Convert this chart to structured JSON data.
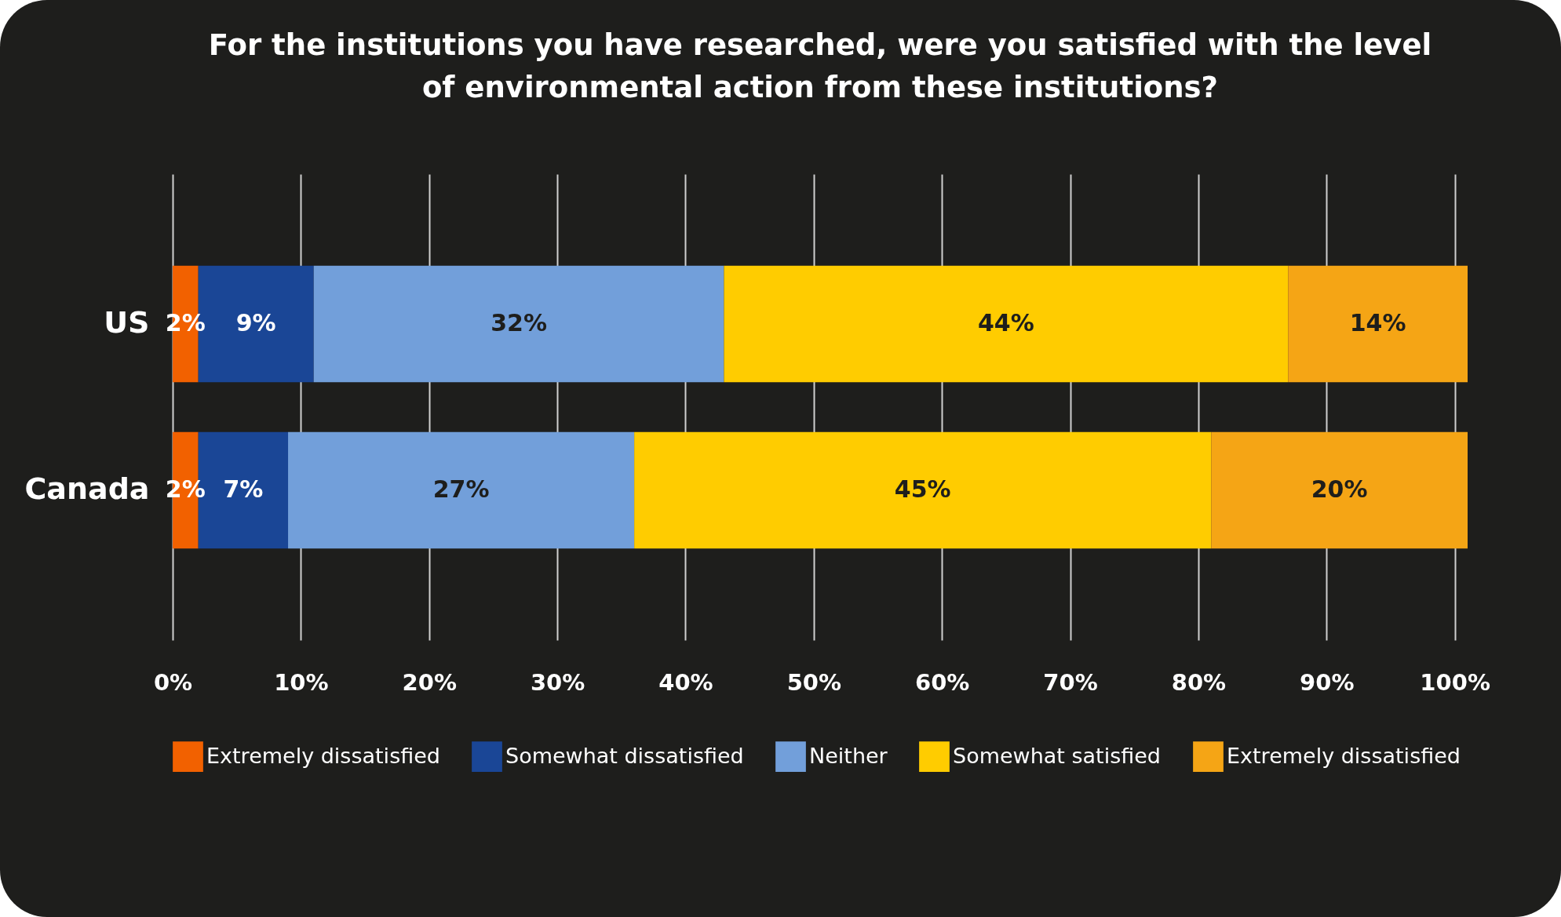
{
  "chart_data": {
    "type": "bar",
    "orientation": "horizontal",
    "stacked": true,
    "title": "For the institutions you have researched, were you satisfied with the level\nof environmental action from these institutions?",
    "categories": [
      "US",
      "Canada"
    ],
    "series": [
      {
        "name": "Extremely dissatisfied",
        "color": "#f26100",
        "values": [
          2,
          2
        ]
      },
      {
        "name": "Somewhat dissatisfied",
        "color": "#1a4696",
        "values": [
          9,
          7
        ]
      },
      {
        "name": "Neither",
        "color": "#729fda",
        "values": [
          32,
          27
        ]
      },
      {
        "name": "Somewhat satisfied",
        "color": "#ffcc00",
        "values": [
          44,
          45
        ]
      },
      {
        "name": "Extremely dissatisfied",
        "color": "#f5a515",
        "values": [
          14,
          20
        ]
      }
    ],
    "xlim": [
      0,
      101
    ],
    "xticks": [
      {
        "value": 0,
        "label": "0%"
      },
      {
        "value": 10,
        "label": "10%"
      },
      {
        "value": 20,
        "label": "20%"
      },
      {
        "value": 30,
        "label": "30%"
      },
      {
        "value": 40,
        "label": "40%"
      },
      {
        "value": 50,
        "label": "50%"
      },
      {
        "value": 60,
        "label": "60%"
      },
      {
        "value": 70,
        "label": "70%"
      },
      {
        "value": 80,
        "label": "80%"
      },
      {
        "value": 90,
        "label": "90%"
      },
      {
        "value": 100,
        "label": "100%"
      }
    ],
    "value_labels": [
      [
        "2%",
        "2%"
      ],
      [
        "9%",
        "7%"
      ],
      [
        "32%",
        "27%"
      ],
      [
        "44%",
        "45%"
      ],
      [
        "14%",
        "20%"
      ]
    ],
    "grid": "x",
    "legend": "bottom"
  }
}
